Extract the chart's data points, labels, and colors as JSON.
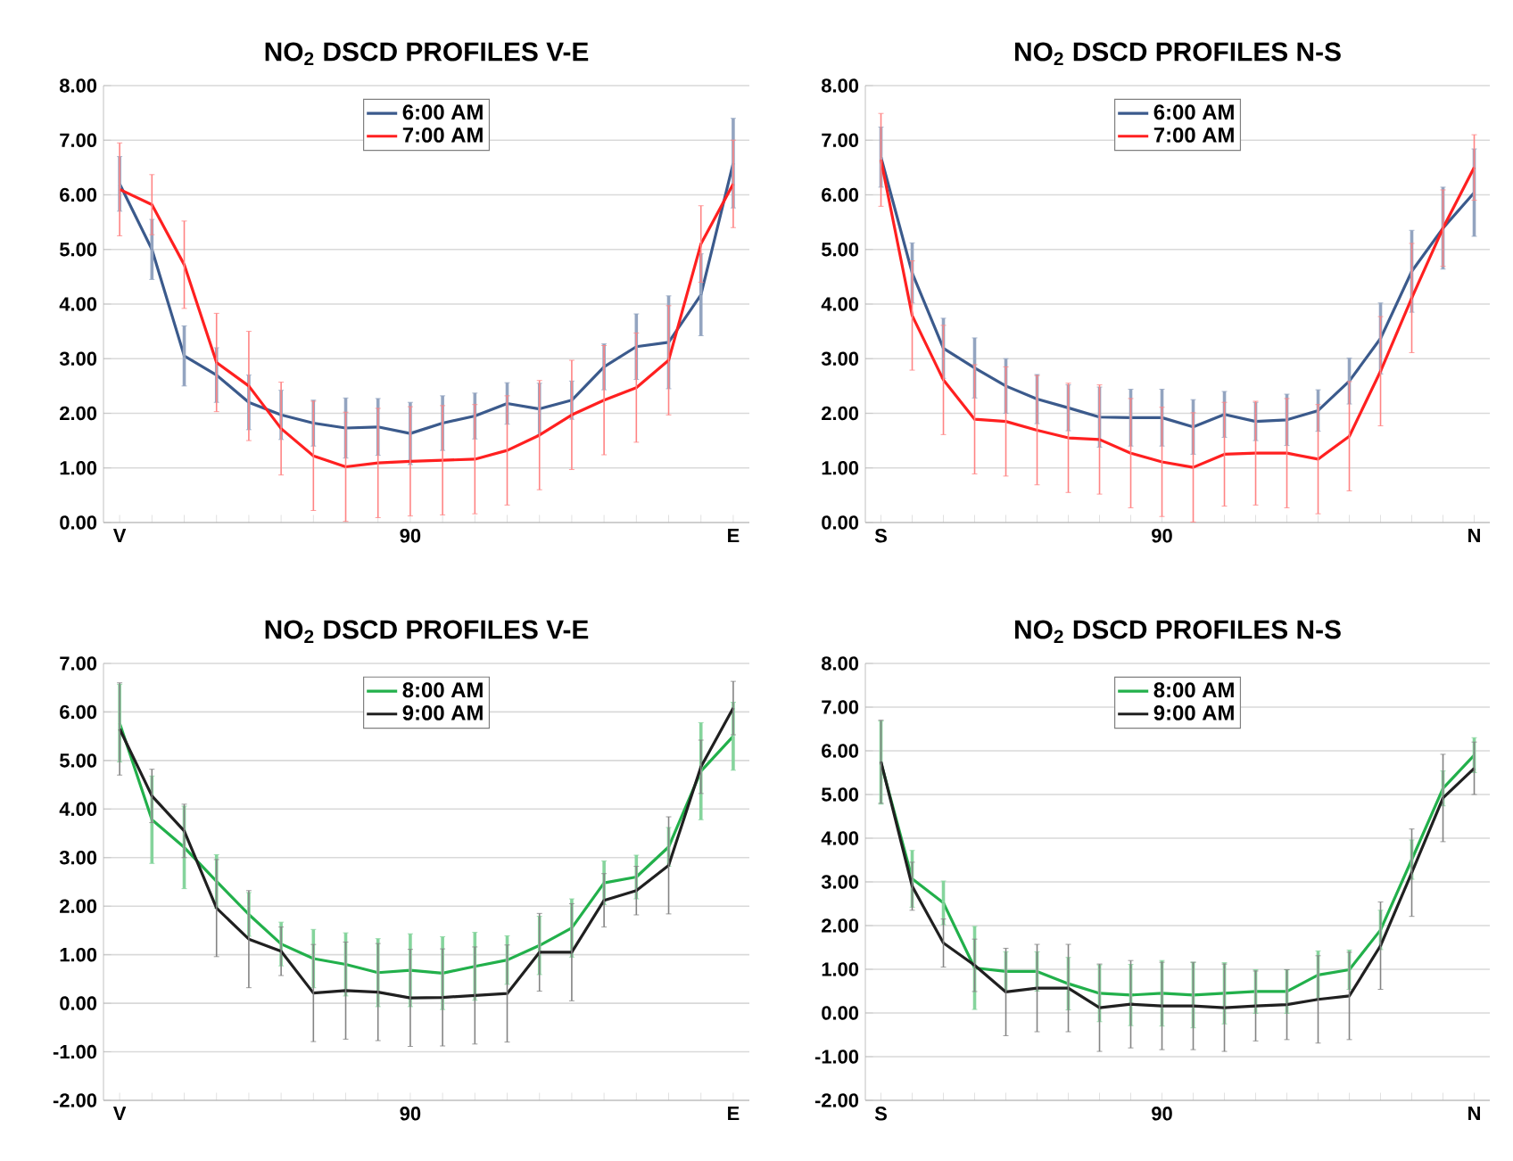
{
  "chart_data": [
    {
      "type": "line",
      "title": "NO$_{2}$ DSCD PROFILES V-E",
      "categories": [
        "V",
        null,
        null,
        null,
        null,
        null,
        null,
        null,
        null,
        "90",
        null,
        null,
        null,
        null,
        null,
        null,
        null,
        null,
        null,
        "E"
      ],
      "ylim": [
        0,
        8
      ],
      "yticks": [
        {
          "value": 0,
          "label": "0.00"
        },
        {
          "value": 1,
          "label": "1.00"
        },
        {
          "value": 2,
          "label": "2.00"
        },
        {
          "value": 3,
          "label": "3.00"
        },
        {
          "value": 4,
          "label": "4.00"
        },
        {
          "value": 5,
          "label": "5.00"
        },
        {
          "value": 6,
          "label": "6.00"
        },
        {
          "value": 7,
          "label": "7.00"
        },
        {
          "value": 8,
          "label": "8.00"
        }
      ],
      "grid": "y",
      "legend": "top",
      "series": [
        {
          "name": "6:00 AM",
          "color": "#3b5a8c",
          "values": [
            6.2,
            5.0,
            3.05,
            2.7,
            2.2,
            1.97,
            1.82,
            1.73,
            1.75,
            1.63,
            1.82,
            1.95,
            2.18,
            2.08,
            2.24,
            2.85,
            3.22,
            3.3,
            4.17,
            6.58
          ],
          "errors": [
            0.5,
            0.55,
            0.55,
            0.5,
            0.5,
            0.45,
            0.42,
            0.55,
            0.52,
            0.57,
            0.5,
            0.42,
            0.38,
            0.47,
            0.35,
            0.42,
            0.6,
            0.85,
            0.75,
            0.82
          ]
        },
        {
          "name": "7:00 AM",
          "color": "#ff2020",
          "values": [
            6.1,
            5.82,
            4.72,
            2.93,
            2.5,
            1.72,
            1.22,
            1.02,
            1.09,
            1.12,
            1.14,
            1.16,
            1.32,
            1.6,
            1.97,
            2.24,
            2.47,
            2.97,
            5.1,
            6.2
          ],
          "errors": [
            0.85,
            0.55,
            0.8,
            0.9,
            1.0,
            0.85,
            1.0,
            1.0,
            1.0,
            1.0,
            1.0,
            1.0,
            1.0,
            1.0,
            1.0,
            1.0,
            1.0,
            1.0,
            0.7,
            0.8
          ]
        }
      ]
    },
    {
      "type": "line",
      "title": "NO$_{2}$ DSCD PROFILES N-S",
      "categories": [
        "S",
        null,
        null,
        null,
        null,
        null,
        null,
        null,
        null,
        "90",
        null,
        null,
        null,
        null,
        null,
        null,
        null,
        null,
        null,
        "N"
      ],
      "ylim": [
        0,
        8
      ],
      "yticks": [
        {
          "value": 0,
          "label": "0.00"
        },
        {
          "value": 1,
          "label": "1.00"
        },
        {
          "value": 2,
          "label": "2.00"
        },
        {
          "value": 3,
          "label": "3.00"
        },
        {
          "value": 4,
          "label": "4.00"
        },
        {
          "value": 5,
          "label": "5.00"
        },
        {
          "value": 6,
          "label": "6.00"
        },
        {
          "value": 7,
          "label": "7.00"
        },
        {
          "value": 8,
          "label": "8.00"
        }
      ],
      "grid": "y",
      "legend": "top",
      "series": [
        {
          "name": "6:00 AM",
          "color": "#3b5a8c",
          "values": [
            6.69,
            4.57,
            3.19,
            2.83,
            2.5,
            2.26,
            2.1,
            1.93,
            1.92,
            1.92,
            1.75,
            1.98,
            1.85,
            1.88,
            2.05,
            2.59,
            3.37,
            4.6,
            5.39,
            6.04
          ],
          "errors": [
            0.55,
            0.55,
            0.55,
            0.55,
            0.5,
            0.45,
            0.42,
            0.55,
            0.52,
            0.52,
            0.5,
            0.42,
            0.35,
            0.47,
            0.38,
            0.42,
            0.65,
            0.75,
            0.75,
            0.8
          ]
        },
        {
          "name": "7:00 AM",
          "color": "#ff2020",
          "values": [
            6.64,
            3.79,
            2.61,
            1.89,
            1.85,
            1.69,
            1.55,
            1.52,
            1.27,
            1.11,
            1.01,
            1.25,
            1.27,
            1.27,
            1.16,
            1.58,
            2.77,
            4.11,
            5.39,
            6.5
          ],
          "errors": [
            0.85,
            1.0,
            1.0,
            1.0,
            1.0,
            1.0,
            1.0,
            1.0,
            1.0,
            1.0,
            1.0,
            0.95,
            0.95,
            1.0,
            1.0,
            1.0,
            1.0,
            1.0,
            0.7,
            0.6
          ]
        }
      ]
    },
    {
      "type": "line",
      "title": "NO$_{2}$ DSCD PROFILES V-E",
      "categories": [
        "V",
        null,
        null,
        null,
        null,
        null,
        null,
        null,
        null,
        "90",
        null,
        null,
        null,
        null,
        null,
        null,
        null,
        null,
        null,
        "E"
      ],
      "ylim": [
        -2,
        7
      ],
      "yticks": [
        {
          "value": -2,
          "label": "-2.00"
        },
        {
          "value": -1,
          "label": "-1.00"
        },
        {
          "value": 0,
          "label": "0.00"
        },
        {
          "value": 1,
          "label": "1.00"
        },
        {
          "value": 2,
          "label": "2.00"
        },
        {
          "value": 3,
          "label": "3.00"
        },
        {
          "value": 4,
          "label": "4.00"
        },
        {
          "value": 5,
          "label": "5.00"
        },
        {
          "value": 6,
          "label": "6.00"
        },
        {
          "value": 7,
          "label": "7.00"
        }
      ],
      "grid": "y",
      "legend": "top",
      "series": [
        {
          "name": "8:00 AM",
          "color": "#22b04b",
          "values": [
            5.77,
            3.78,
            3.21,
            2.51,
            1.83,
            1.22,
            0.92,
            0.8,
            0.63,
            0.68,
            0.62,
            0.76,
            0.89,
            1.19,
            1.55,
            2.48,
            2.6,
            3.22,
            4.78,
            5.5
          ],
          "errors": [
            0.8,
            0.9,
            0.85,
            0.55,
            0.45,
            0.45,
            0.6,
            0.65,
            0.7,
            0.75,
            0.75,
            0.7,
            0.5,
            0.6,
            0.6,
            0.45,
            0.45,
            0.4,
            1.0,
            0.7
          ]
        },
        {
          "name": "9:00 AM",
          "color": "#202020",
          "values": [
            5.65,
            4.27,
            3.55,
            1.96,
            1.32,
            1.07,
            0.21,
            0.26,
            0.23,
            0.11,
            0.12,
            0.16,
            0.2,
            1.05,
            1.05,
            2.12,
            2.32,
            2.84,
            4.87,
            6.08
          ],
          "errors": [
            0.95,
            0.55,
            0.55,
            1.0,
            1.0,
            0.5,
            1.0,
            1.0,
            1.0,
            1.0,
            1.0,
            1.0,
            1.0,
            0.8,
            1.0,
            0.55,
            0.5,
            1.0,
            0.55,
            0.55
          ]
        }
      ]
    },
    {
      "type": "line",
      "title": "NO$_{2}$ DSCD PROFILES N-S",
      "categories": [
        "S",
        null,
        null,
        null,
        null,
        null,
        null,
        null,
        null,
        "90",
        null,
        null,
        null,
        null,
        null,
        null,
        null,
        null,
        null,
        "N"
      ],
      "ylim": [
        -2,
        8
      ],
      "yticks": [
        {
          "value": -2,
          "label": "-2.00"
        },
        {
          "value": -1,
          "label": "-1.00"
        },
        {
          "value": 0,
          "label": "0.00"
        },
        {
          "value": 1,
          "label": "1.00"
        },
        {
          "value": 2,
          "label": "2.00"
        },
        {
          "value": 3,
          "label": "3.00"
        },
        {
          "value": 4,
          "label": "4.00"
        },
        {
          "value": 5,
          "label": "5.00"
        },
        {
          "value": 6,
          "label": "6.00"
        },
        {
          "value": 7,
          "label": "7.00"
        },
        {
          "value": 8,
          "label": "8.00"
        }
      ],
      "grid": "y",
      "legend": "top",
      "series": [
        {
          "name": "8:00 AM",
          "color": "#22b04b",
          "values": [
            5.73,
            3.07,
            2.52,
            1.03,
            0.95,
            0.95,
            0.67,
            0.45,
            0.41,
            0.45,
            0.41,
            0.45,
            0.49,
            0.49,
            0.87,
            0.99,
            1.9,
            3.51,
            5.14,
            5.9
          ],
          "errors": [
            0.95,
            0.65,
            0.5,
            0.95,
            0.45,
            0.45,
            0.6,
            0.65,
            0.7,
            0.75,
            0.75,
            0.7,
            0.5,
            0.5,
            0.55,
            0.45,
            0.45,
            0.45,
            0.4,
            0.4
          ]
        },
        {
          "name": "9:00 AM",
          "color": "#202020",
          "values": [
            5.75,
            2.9,
            1.6,
            1.09,
            0.48,
            0.57,
            0.57,
            0.12,
            0.2,
            0.16,
            0.16,
            0.12,
            0.16,
            0.19,
            0.31,
            0.39,
            1.54,
            3.21,
            4.92,
            5.6
          ],
          "errors": [
            0.95,
            0.55,
            0.55,
            0.6,
            1.0,
            1.0,
            1.0,
            1.0,
            1.0,
            1.0,
            1.0,
            1.0,
            0.8,
            0.8,
            1.0,
            1.0,
            1.0,
            1.0,
            1.0,
            0.6
          ]
        }
      ]
    }
  ]
}
